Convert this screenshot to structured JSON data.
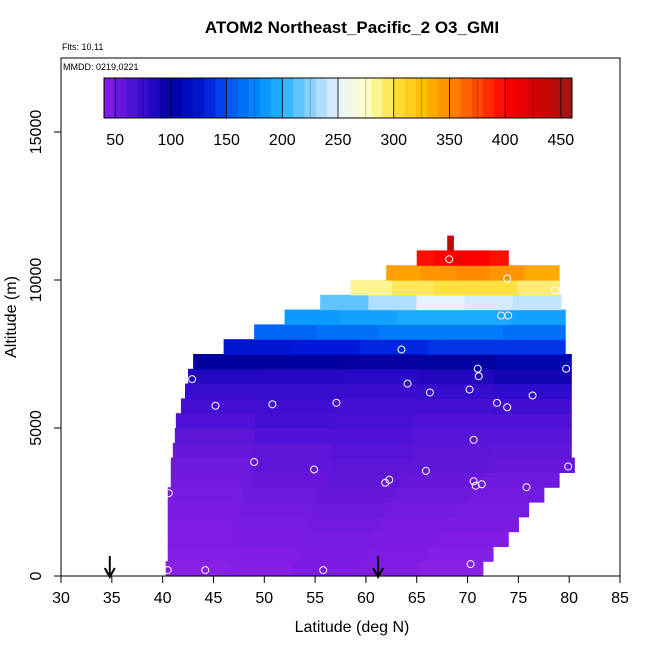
{
  "chart_data": {
    "type": "heatmap",
    "title": "ATOM2 Northeast_Pacific_2 O3_GMI",
    "flights_label": "Flts: 10,11",
    "mmdd_label": "MMDD: 0219,0221",
    "xlabel": "Latitude (deg N)",
    "ylabel": "Altitude (m)",
    "xlim": [
      30,
      85
    ],
    "ylim": [
      0,
      17500
    ],
    "xticks": [
      "30",
      "35",
      "40",
      "45",
      "50",
      "55",
      "60",
      "65",
      "70",
      "75",
      "80",
      "85"
    ],
    "yticks": [
      "0",
      "5000",
      "10000",
      "15000"
    ],
    "colorbar": {
      "range": [
        40,
        460
      ],
      "ticks": [
        "50",
        "100",
        "150",
        "200",
        "250",
        "300",
        "350",
        "400",
        "450"
      ],
      "stops": [
        {
          "value": 40,
          "color": "#8a1fe6"
        },
        {
          "value": 80,
          "color": "#2d0acc"
        },
        {
          "value": 100,
          "color": "#00009e"
        },
        {
          "value": 130,
          "color": "#0018dc"
        },
        {
          "value": 150,
          "color": "#0050f0"
        },
        {
          "value": 180,
          "color": "#0090ff"
        },
        {
          "value": 200,
          "color": "#22b2ff"
        },
        {
          "value": 225,
          "color": "#8ad0ff"
        },
        {
          "value": 250,
          "color": "#e6f2ff"
        },
        {
          "value": 275,
          "color": "#ffffc8"
        },
        {
          "value": 300,
          "color": "#ffe040"
        },
        {
          "value": 325,
          "color": "#ffc000"
        },
        {
          "value": 350,
          "color": "#ff8a00"
        },
        {
          "value": 375,
          "color": "#ff4a00"
        },
        {
          "value": 400,
          "color": "#ff0000"
        },
        {
          "value": 430,
          "color": "#d00000"
        },
        {
          "value": 460,
          "color": "#a01818"
        }
      ]
    },
    "curtain_rows": [
      {
        "alt_bottom": 0,
        "alt_top": 500,
        "lat_start": 40.3,
        "lat_end": 71.5,
        "o3": [
          40,
          42,
          46,
          44,
          40
        ]
      },
      {
        "alt_bottom": 500,
        "alt_top": 1000,
        "lat_start": 40.5,
        "lat_end": 72.5,
        "o3": [
          42,
          44,
          46,
          45,
          42
        ]
      },
      {
        "alt_bottom": 1000,
        "alt_top": 1500,
        "lat_start": 40.5,
        "lat_end": 74.0,
        "o3": [
          44,
          46,
          48,
          46,
          44
        ]
      },
      {
        "alt_bottom": 1500,
        "alt_top": 2000,
        "lat_start": 40.5,
        "lat_end": 75.0,
        "o3": [
          45,
          48,
          50,
          47,
          46
        ]
      },
      {
        "alt_bottom": 2000,
        "alt_top": 2500,
        "lat_start": 40.5,
        "lat_end": 76.0,
        "o3": [
          46,
          50,
          52,
          50,
          48
        ]
      },
      {
        "alt_bottom": 2500,
        "alt_top": 3000,
        "lat_start": 40.5,
        "lat_end": 77.5,
        "o3": [
          48,
          52,
          55,
          52,
          50
        ]
      },
      {
        "alt_bottom": 3000,
        "alt_top": 3500,
        "lat_start": 40.8,
        "lat_end": 79.0,
        "o3": [
          50,
          55,
          58,
          55,
          52
        ]
      },
      {
        "alt_bottom": 3500,
        "alt_top": 4000,
        "lat_start": 40.8,
        "lat_end": 80.5,
        "o3": [
          52,
          58,
          60,
          58,
          55
        ]
      },
      {
        "alt_bottom": 4000,
        "alt_top": 4500,
        "lat_start": 41.0,
        "lat_end": 80.2,
        "o3": [
          55,
          60,
          62,
          60,
          58
        ]
      },
      {
        "alt_bottom": 4500,
        "alt_top": 5000,
        "lat_start": 41.2,
        "lat_end": 80.2,
        "o3": [
          60,
          65,
          65,
          62,
          62
        ]
      },
      {
        "alt_bottom": 5000,
        "alt_top": 5500,
        "lat_start": 41.3,
        "lat_end": 80.2,
        "o3": [
          65,
          70,
          68,
          66,
          66
        ]
      },
      {
        "alt_bottom": 5500,
        "alt_top": 6000,
        "lat_start": 41.8,
        "lat_end": 80.2,
        "o3": [
          70,
          72,
          70,
          70,
          72
        ]
      },
      {
        "alt_bottom": 6000,
        "alt_top": 6500,
        "lat_start": 42.2,
        "lat_end": 80.2,
        "o3": [
          75,
          76,
          74,
          76,
          80
        ]
      },
      {
        "alt_bottom": 6500,
        "alt_top": 7000,
        "lat_start": 42.5,
        "lat_end": 80.2,
        "o3": [
          85,
          84,
          82,
          86,
          92
        ]
      },
      {
        "alt_bottom": 7000,
        "alt_top": 7500,
        "lat_start": 43.0,
        "lat_end": 80.2,
        "o3": [
          100,
          100,
          98,
          102,
          108
        ]
      },
      {
        "alt_bottom": 7500,
        "alt_top": 8000,
        "lat_start": 46.0,
        "lat_end": 79.6,
        "o3": [
          125,
          130,
          135,
          140,
          140
        ]
      },
      {
        "alt_bottom": 8000,
        "alt_top": 8500,
        "lat_start": 49.0,
        "lat_end": 79.6,
        "o3": [
          160,
          165,
          170,
          170,
          165
        ]
      },
      {
        "alt_bottom": 8500,
        "alt_top": 9000,
        "lat_start": 52.0,
        "lat_end": 79.6,
        "o3": [
          185,
          190,
          195,
          195,
          190
        ]
      },
      {
        "alt_bottom": 9000,
        "alt_top": 9500,
        "lat_start": 55.5,
        "lat_end": 79.2,
        "o3": [
          215,
          235,
          250,
          245,
          240
        ]
      },
      {
        "alt_bottom": 9500,
        "alt_top": 10000,
        "lat_start": 58.5,
        "lat_end": 79.0,
        "o3": [
          285,
          295,
          300,
          300,
          290
        ]
      },
      {
        "alt_bottom": 10000,
        "alt_top": 10500,
        "lat_start": 62.0,
        "lat_end": 79.0,
        "o3": [
          340,
          345,
          350,
          345,
          335
        ]
      },
      {
        "alt_bottom": 10500,
        "alt_top": 11000,
        "lat_start": 65.0,
        "lat_end": 74.0,
        "o3": [
          395,
          400,
          405,
          400,
          395
        ]
      },
      {
        "alt_bottom": 11000,
        "alt_top": 11500,
        "lat_start": 68.0,
        "lat_end": 68.6,
        "o3": [
          440
        ]
      }
    ],
    "samples": [
      [
        40.5,
        200
      ],
      [
        44.2,
        200
      ],
      [
        55.8,
        200
      ],
      [
        70.3,
        400
      ],
      [
        40.6,
        2800
      ],
      [
        49.0,
        3850
      ],
      [
        54.9,
        3600
      ],
      [
        61.9,
        3150
      ],
      [
        62.3,
        3250
      ],
      [
        65.9,
        3550
      ],
      [
        70.6,
        3200
      ],
      [
        70.8,
        3050
      ],
      [
        71.4,
        3100
      ],
      [
        75.8,
        3000
      ],
      [
        79.9,
        3700
      ],
      [
        70.6,
        4600
      ],
      [
        45.2,
        5750
      ],
      [
        50.8,
        5800
      ],
      [
        57.1,
        5850
      ],
      [
        72.9,
        5850
      ],
      [
        73.9,
        5700
      ],
      [
        66.3,
        6200
      ],
      [
        70.2,
        6300
      ],
      [
        76.4,
        6100
      ],
      [
        64.1,
        6500
      ],
      [
        42.9,
        6650
      ],
      [
        71.1,
        6750
      ],
      [
        71.0,
        7000
      ],
      [
        79.7,
        7000
      ],
      [
        63.5,
        7650
      ],
      [
        73.3,
        8800
      ],
      [
        74.0,
        8800
      ],
      [
        78.6,
        9650
      ],
      [
        73.9,
        10050
      ],
      [
        68.2,
        10700
      ]
    ],
    "flight_markers": [
      34.8,
      61.2
    ]
  }
}
